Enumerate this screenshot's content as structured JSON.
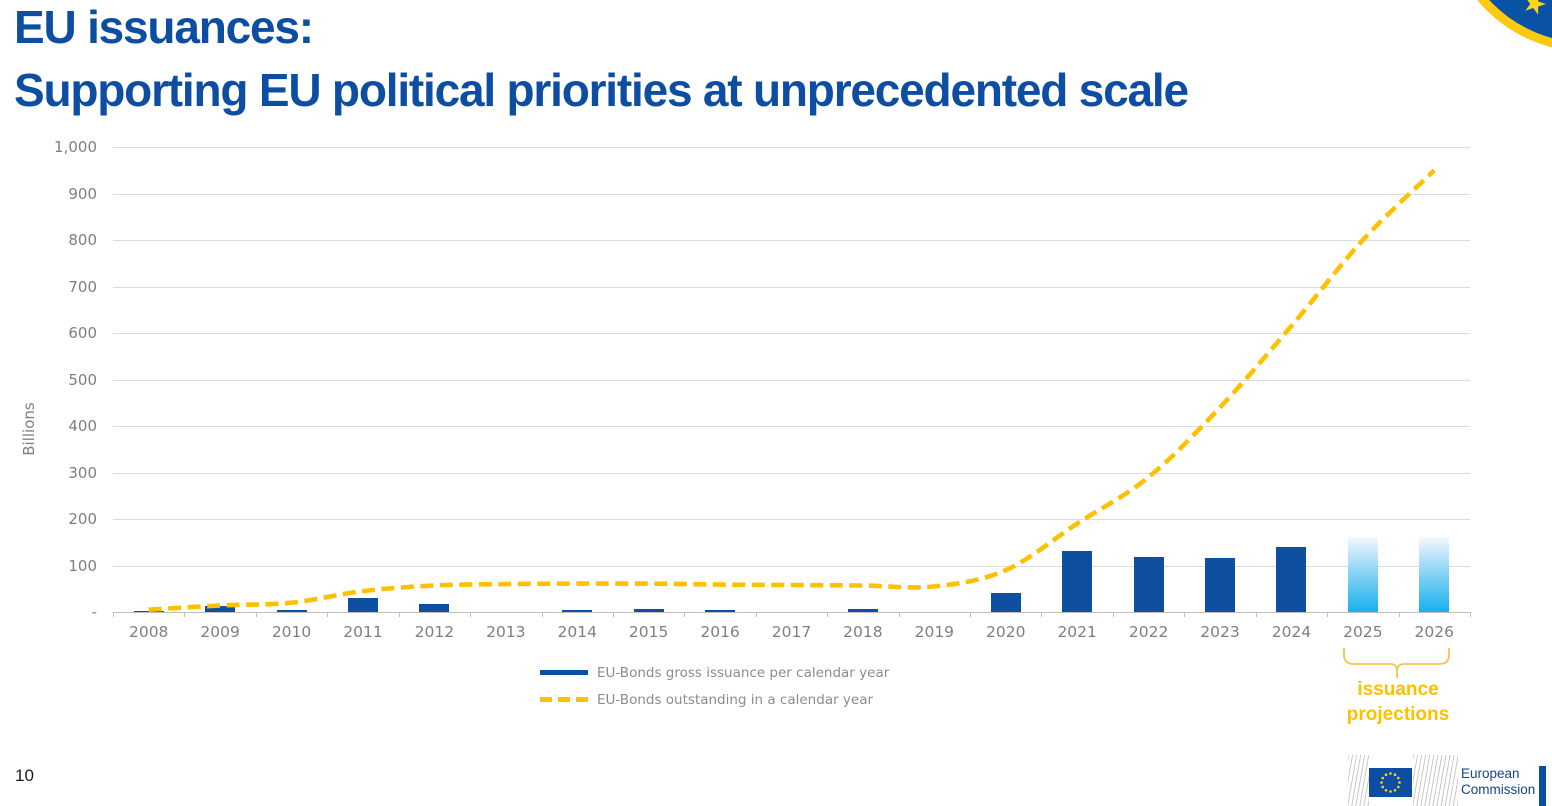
{
  "slide": {
    "title_line1": "EU issuances:",
    "title_line2": "Supporting EU political priorities at unprecedented scale",
    "title_color": "#0d4ea3",
    "page_number": "10"
  },
  "chart_data": {
    "type": "bar",
    "title": "",
    "xlabel": "",
    "ylabel": "Billions",
    "ylim": [
      0,
      1000
    ],
    "ytick_interval": 100,
    "ytick_labels_bottom_to_top": [
      "-",
      "100",
      "200",
      "300",
      "400",
      "500",
      "600",
      "700",
      "800",
      "900",
      "1,000"
    ],
    "grid": true,
    "legend_position": "bottom-center",
    "categories": [
      "2008",
      "2009",
      "2010",
      "2011",
      "2012",
      "2013",
      "2014",
      "2015",
      "2016",
      "2017",
      "2018",
      "2019",
      "2020",
      "2021",
      "2022",
      "2023",
      "2024",
      "2025",
      "2026"
    ],
    "series": [
      {
        "name": "EU-Bonds gross issuance per calendar year",
        "type": "bar",
        "color": "#0e4fa1",
        "values": [
          3,
          12,
          5,
          30,
          17,
          0,
          5,
          7,
          5,
          0,
          6,
          0,
          40,
          132,
          118,
          116,
          139,
          162,
          162
        ],
        "projection_from": "2025",
        "projection_gradient": [
          "#f3f9fe",
          "#9ad9f6",
          "#17b0ee"
        ]
      },
      {
        "name": "EU-Bonds outstanding in a calendar year",
        "type": "line",
        "line_style": "dashed",
        "color": "#ffc000",
        "values": [
          5,
          14,
          20,
          45,
          57,
          60,
          61,
          61,
          59,
          58,
          57,
          55,
          90,
          190,
          290,
          440,
          615,
          800,
          950
        ]
      }
    ],
    "annotation": {
      "line1": "issuance",
      "line2": "projections",
      "color": "#ffc000",
      "applies_to": [
        "2025",
        "2026"
      ]
    }
  },
  "footer": {
    "logo_line1": "European",
    "logo_line2": "Commission"
  },
  "decor": {
    "corner_badge_icon": "eu-flag-circle-badge",
    "corner_star_icon": "star-icon"
  }
}
